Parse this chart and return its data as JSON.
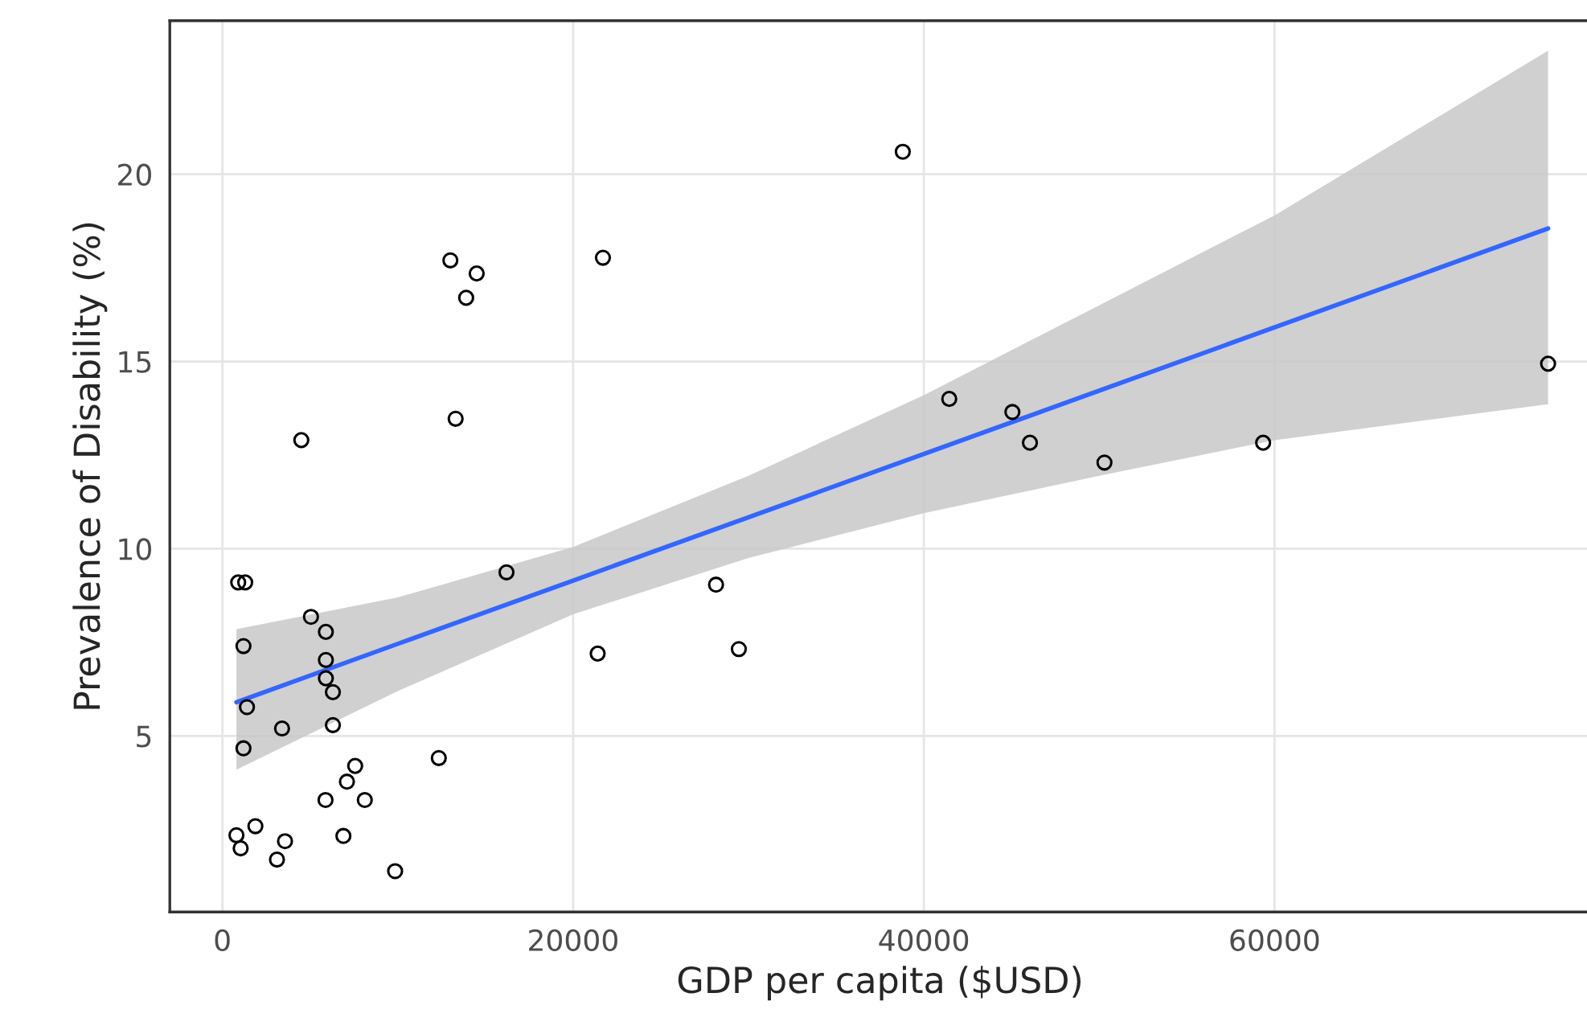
{
  "chart_data": {
    "type": "scatter",
    "xlabel": "GDP per capita ($USD)",
    "ylabel": "Prevalence of Disability (%)",
    "xlim": [
      -3000,
      78000
    ],
    "ylim": [
      0.3,
      24.1
    ],
    "xticks": [
      0,
      20000,
      40000,
      60000
    ],
    "yticks": [
      5,
      10,
      15,
      20
    ],
    "grid": true,
    "series": [
      {
        "marker": "circle",
        "color": "#000000",
        "x": [
          900,
          1300,
          1200,
          1400,
          1200,
          800,
          1040,
          1880,
          3570,
          3110,
          3400,
          4500,
          5050,
          5900,
          5900,
          5900,
          6300,
          6300,
          7570,
          7100,
          5880,
          8120,
          6900,
          9850,
          12340,
          16200,
          13000,
          14500,
          13900,
          13300,
          21700,
          38800,
          28150,
          21400,
          29450,
          41450,
          45050,
          46050,
          50300,
          59350,
          75600
        ],
        "values": [
          9.1,
          9.1,
          7.4,
          5.77,
          4.67,
          2.35,
          2.0,
          2.59,
          2.19,
          1.7,
          5.2,
          12.9,
          8.18,
          7.78,
          7.03,
          6.54,
          6.17,
          5.29,
          4.2,
          3.78,
          3.29,
          3.29,
          2.33,
          1.39,
          4.41,
          9.37,
          17.7,
          17.35,
          16.7,
          13.47,
          17.77,
          20.6,
          9.04,
          7.2,
          7.32,
          14.0,
          13.65,
          12.83,
          12.3,
          12.83,
          14.94
        ]
      },
      {
        "type": "line",
        "color": "#3366ff",
        "x": [
          800,
          10000,
          20000,
          30000,
          40000,
          50000,
          60000,
          75600
        ],
        "values": [
          5.9,
          7.46,
          9.15,
          10.84,
          12.53,
          14.22,
          15.91,
          18.55
        ],
        "lower": [
          4.1,
          6.2,
          8.25,
          9.75,
          10.95,
          11.95,
          12.9,
          13.86
        ],
        "upper": [
          7.85,
          8.7,
          10.05,
          11.95,
          14.1,
          16.5,
          18.9,
          23.3
        ]
      }
    ]
  }
}
